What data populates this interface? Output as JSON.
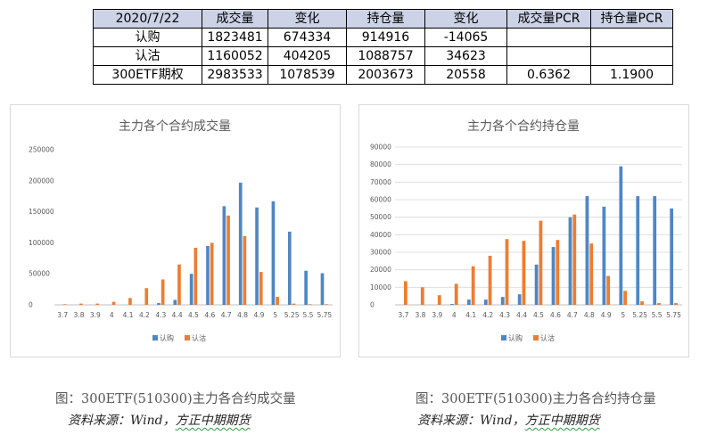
{
  "summary_table": {
    "header": [
      "2020/7/22",
      "成交量",
      "变化",
      "持仓量",
      "变化",
      "成交量PCR",
      "持仓量PCR"
    ],
    "rows": [
      [
        "认购",
        "1823481",
        "674334",
        "914916",
        "-14065",
        "",
        ""
      ],
      [
        "认沽",
        "1160052",
        "404205",
        "1088757",
        "34623",
        "",
        ""
      ],
      [
        "300ETF期权",
        "2983533",
        "1078539",
        "2003673",
        "20558",
        "0.6362",
        "1.1900"
      ]
    ]
  },
  "colors": {
    "call": "#4f87c4",
    "put": "#ed7d31",
    "grid": "#d9d9d9",
    "axis": "#bfbfbf",
    "text": "#595959",
    "header_bg": "#ccd3e6"
  },
  "chart_data": [
    {
      "type": "bar",
      "title": "主力各个合约成交量",
      "categories": [
        "3.7",
        "3.8",
        "3.9",
        "4",
        "4.1",
        "4.2",
        "4.3",
        "4.4",
        "4.5",
        "4.6",
        "4.7",
        "4.8",
        "4.9",
        "5",
        "5.25",
        "5.5",
        "5.75"
      ],
      "series": [
        {
          "name": "认购",
          "values": [
            0,
            0,
            0,
            0,
            0,
            0,
            3000,
            8000,
            50000,
            95000,
            159000,
            197000,
            157000,
            167000,
            118000,
            55000,
            51000
          ]
        },
        {
          "name": "认沽",
          "values": [
            1000,
            2000,
            2000,
            5000,
            11000,
            27000,
            41000,
            65000,
            92000,
            100000,
            144000,
            111000,
            53000,
            13000,
            2000,
            1000,
            1000
          ]
        }
      ],
      "ylim": [
        0,
        250000
      ],
      "yticks": [
        "0",
        "50000",
        "100000",
        "150000",
        "200000",
        "250000"
      ],
      "grid": false,
      "legend": "bottom"
    },
    {
      "type": "bar",
      "title": "主力各个合约持仓量",
      "categories": [
        "3.7",
        "3.8",
        "3.9",
        "4",
        "4.1",
        "4.2",
        "4.3",
        "4.4",
        "4.5",
        "4.6",
        "4.7",
        "4.8",
        "4.9",
        "5",
        "5.25",
        "5.5",
        "5.75"
      ],
      "series": [
        {
          "name": "认购",
          "values": [
            0,
            0,
            0,
            500,
            3000,
            3000,
            4500,
            6000,
            23000,
            33000,
            50000,
            62000,
            56000,
            79000,
            62000,
            62000,
            55000
          ]
        },
        {
          "name": "认沽",
          "values": [
            13500,
            10000,
            5500,
            12000,
            22000,
            28000,
            37500,
            36500,
            48000,
            37000,
            51500,
            35000,
            16500,
            8000,
            2000,
            1000,
            1000
          ]
        }
      ],
      "ylim": [
        0,
        90000
      ],
      "yticks": [
        "0",
        "10000",
        "20000",
        "30000",
        "40000",
        "50000",
        "60000",
        "70000",
        "80000",
        "90000"
      ],
      "grid": true,
      "legend": "bottom"
    }
  ],
  "captions": {
    "left": "图：300ETF(510300)主力各合约成交量",
    "right": "图：300ETF(510300)主力各合约持仓量",
    "source_prefix": "资料来源：Wind，",
    "source_name": "方正中期期货"
  }
}
